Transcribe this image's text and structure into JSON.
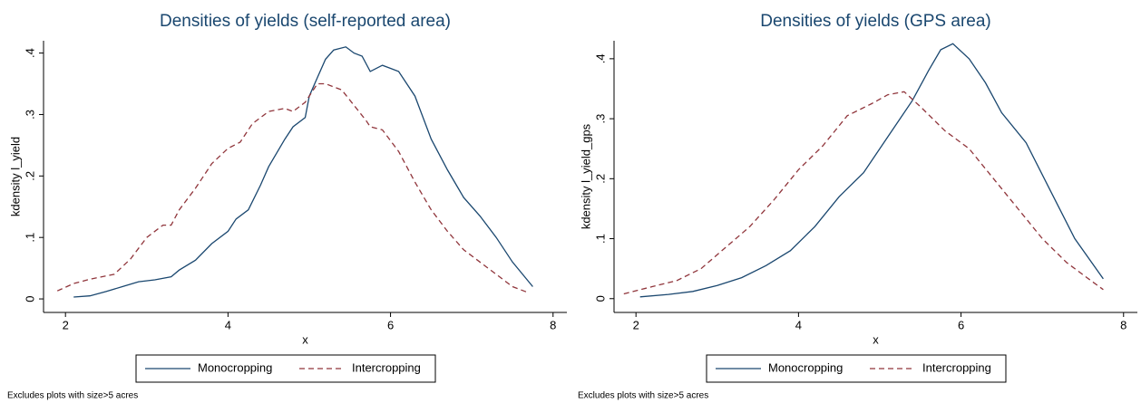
{
  "chart_data": [
    {
      "type": "line",
      "title": "Densities of yields (self-reported area)",
      "xlabel": "x",
      "ylabel": "kdensity l_yield",
      "note": "Excludes plots with size>5 acres",
      "grid": false,
      "legend": "bottom",
      "xlim": [
        1.73,
        8.17
      ],
      "xticks": [
        2,
        4,
        6,
        8
      ],
      "ylim": [
        -0.022,
        0.42
      ],
      "yticks": [
        0,
        {
          "value": 0.1,
          "label": ".1"
        },
        {
          "value": 0.2,
          "label": ".2"
        },
        {
          "value": 0.3,
          "label": ".3"
        },
        {
          "value": 0.4,
          "label": ".4"
        }
      ],
      "series": [
        {
          "name": "Monocropping",
          "color": "#1a476f",
          "dash": false,
          "x": [
            2.1,
            2.3,
            2.5,
            2.7,
            2.9,
            3.1,
            3.3,
            3.4,
            3.6,
            3.8,
            4.0,
            4.1,
            4.25,
            4.4,
            4.5,
            4.7,
            4.8,
            4.95,
            5.0,
            5.1,
            5.2,
            5.3,
            5.45,
            5.55,
            5.65,
            5.75,
            5.9,
            6.0,
            6.1,
            6.3,
            6.5,
            6.7,
            6.9,
            7.1,
            7.3,
            7.5,
            7.75
          ],
          "values": [
            0.003,
            0.005,
            0.012,
            0.02,
            0.028,
            0.031,
            0.036,
            0.047,
            0.063,
            0.09,
            0.11,
            0.13,
            0.145,
            0.185,
            0.215,
            0.26,
            0.28,
            0.295,
            0.33,
            0.36,
            0.39,
            0.405,
            0.41,
            0.4,
            0.395,
            0.37,
            0.38,
            0.375,
            0.37,
            0.33,
            0.26,
            0.21,
            0.165,
            0.135,
            0.1,
            0.06,
            0.02
          ]
        },
        {
          "name": "Intercropping",
          "color": "#90353b",
          "dash": true,
          "x": [
            1.9,
            2.1,
            2.3,
            2.6,
            2.8,
            3.0,
            3.2,
            3.3,
            3.4,
            3.6,
            3.8,
            4.0,
            4.15,
            4.3,
            4.5,
            4.7,
            4.8,
            4.95,
            5.1,
            5.2,
            5.4,
            5.55,
            5.7,
            5.75,
            5.9,
            6.1,
            6.3,
            6.5,
            6.7,
            6.9,
            7.1,
            7.3,
            7.5,
            7.7
          ],
          "values": [
            0.013,
            0.025,
            0.032,
            0.04,
            0.065,
            0.1,
            0.12,
            0.12,
            0.145,
            0.18,
            0.22,
            0.245,
            0.255,
            0.285,
            0.305,
            0.31,
            0.305,
            0.32,
            0.35,
            0.35,
            0.34,
            0.315,
            0.29,
            0.28,
            0.275,
            0.24,
            0.19,
            0.145,
            0.11,
            0.08,
            0.06,
            0.04,
            0.02,
            0.01
          ]
        }
      ]
    },
    {
      "type": "line",
      "title": "Densities of yields (GPS area)",
      "xlabel": "x",
      "ylabel": "kdensity l_yield_gps",
      "note": "Excludes plots with size>5 acres",
      "grid": false,
      "legend": "bottom",
      "xlim": [
        1.73,
        8.17
      ],
      "xticks": [
        2,
        4,
        6,
        8
      ],
      "ylim": [
        -0.023,
        0.43
      ],
      "yticks": [
        0,
        {
          "value": 0.1,
          "label": ".1"
        },
        {
          "value": 0.2,
          "label": ".2"
        },
        {
          "value": 0.3,
          "label": ".3"
        },
        {
          "value": 0.4,
          "label": ".4"
        }
      ],
      "series": [
        {
          "name": "Monocropping",
          "color": "#1a476f",
          "dash": false,
          "x": [
            2.05,
            2.4,
            2.7,
            3.0,
            3.3,
            3.6,
            3.9,
            4.2,
            4.5,
            4.8,
            5.1,
            5.4,
            5.6,
            5.75,
            5.9,
            6.1,
            6.3,
            6.5,
            6.8,
            7.1,
            7.4,
            7.75
          ],
          "values": [
            0.003,
            0.007,
            0.012,
            0.022,
            0.035,
            0.055,
            0.08,
            0.12,
            0.17,
            0.21,
            0.27,
            0.33,
            0.38,
            0.415,
            0.425,
            0.4,
            0.36,
            0.31,
            0.26,
            0.18,
            0.1,
            0.033
          ]
        },
        {
          "name": "Intercropping",
          "color": "#90353b",
          "dash": true,
          "x": [
            1.85,
            2.2,
            2.5,
            2.8,
            3.1,
            3.4,
            3.7,
            4.0,
            4.3,
            4.6,
            4.9,
            5.1,
            5.3,
            5.5,
            5.8,
            6.1,
            6.4,
            6.7,
            7.0,
            7.3,
            7.6,
            7.75
          ],
          "values": [
            0.008,
            0.02,
            0.03,
            0.05,
            0.085,
            0.12,
            0.165,
            0.215,
            0.255,
            0.305,
            0.325,
            0.34,
            0.345,
            0.32,
            0.28,
            0.25,
            0.2,
            0.15,
            0.1,
            0.06,
            0.03,
            0.015
          ]
        }
      ]
    }
  ]
}
